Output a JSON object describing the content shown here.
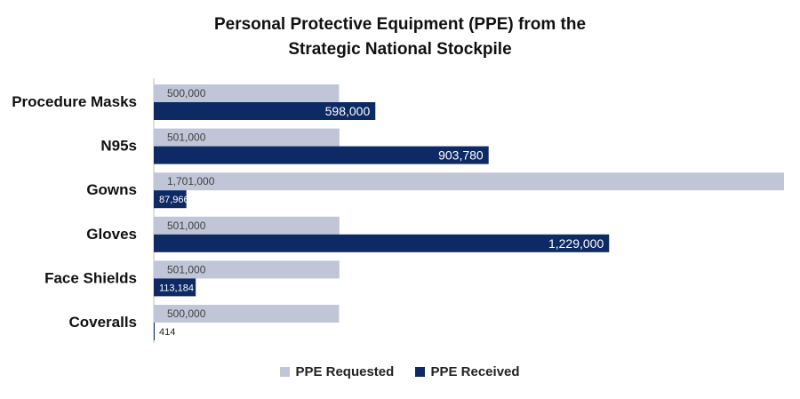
{
  "chart_data": {
    "type": "bar",
    "orientation": "horizontal",
    "title_lines": [
      "Personal Protective Equipment (PPE) from the",
      "Strategic National Stockpile"
    ],
    "categories": [
      "Procedure Masks",
      "N95s",
      "Gowns",
      "Gloves",
      "Face Shields",
      "Coveralls"
    ],
    "series": [
      {
        "name": "PPE Requested",
        "color": "#c0c6d8",
        "values": [
          500000,
          501000,
          1701000,
          501000,
          501000,
          500000
        ],
        "labels": [
          "500,000",
          "501,000",
          "1,701,000",
          "501,000",
          "501,000",
          "500,000"
        ]
      },
      {
        "name": "PPE Received",
        "color": "#0d2a64",
        "values": [
          598000,
          903780,
          87966,
          1229000,
          113184,
          414
        ],
        "labels": [
          "598,000",
          "903,780",
          "87,966",
          "1,229,000",
          "113,184",
          "414"
        ]
      }
    ],
    "xlim": [
      0,
      1701000
    ],
    "grid": false,
    "legend_position": "bottom"
  }
}
